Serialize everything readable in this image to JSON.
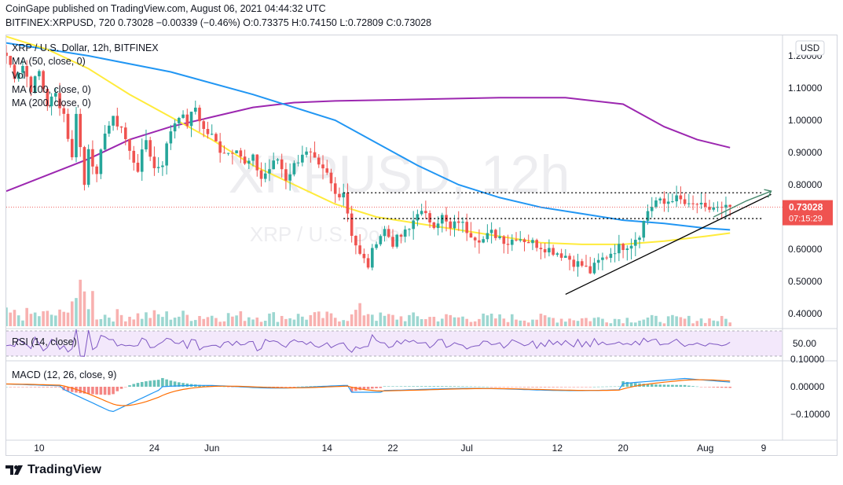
{
  "header": {
    "published_line": "CoinGape published on TradingView.com, August 06, 2021 04:44:32 UTC",
    "symbol": "BITFINEX:XRPUSD, 720",
    "last": "0.73028",
    "change": "−0.00339 (−0.46%)",
    "open": "O:0.73375",
    "high": "H:0.74150",
    "low": "L:0.72809",
    "close": "C:0.73028"
  },
  "legend": {
    "title": "XRP / U.S. Dollar, 12h, BITFINEX",
    "ma50": "MA (50, close, 0)",
    "vol": "Vol",
    "ma100": "MA (100, close, 0)",
    "ma200": "MA (200, close, 0)"
  },
  "watermark": {
    "main": "XRPUSD, 12h",
    "sub": "XRP / U.S. Dollar"
  },
  "price_axis": {
    "currency": "USD",
    "ticks": [
      "1.20000",
      "1.10000",
      "1.00000",
      "0.90000",
      "0.80000",
      "0.60000",
      "0.50000",
      "0.40000"
    ],
    "price_label": "0.73028",
    "countdown_label": "07:15:29"
  },
  "rsi_pane": {
    "label": "RSI (14, close)",
    "tick": "50.00"
  },
  "macd_pane": {
    "label": "MACD (12, 26, close, 9)",
    "ticks": [
      "0.10000",
      "0.00000",
      "−0.10000"
    ]
  },
  "time_axis": {
    "ticks": [
      "10",
      "24",
      "Jun",
      "14",
      "22",
      "Jul",
      "12",
      "20",
      "Aug",
      "9"
    ]
  },
  "footer": {
    "brand": "TradingView"
  },
  "colors": {
    "up": "#26a69a",
    "down": "#ef5350",
    "ma50": "#ffeb3b",
    "ma100": "#2196f3",
    "ma200": "#9c27b0",
    "rsi": "#7e57c2",
    "macd": "#2196f3",
    "signal": "#ff6d00",
    "trendline": "#000000",
    "arrow": "#4a8a6f",
    "price_badge": "#ef5350"
  },
  "chart_data": {
    "type": "candlestick",
    "title": "XRP / U.S. Dollar, 12h, BITFINEX",
    "xlabel": "",
    "ylabel": "",
    "x_ticks": [
      "10",
      "24",
      "Jun",
      "14",
      "22",
      "Jul",
      "12",
      "20",
      "Aug",
      "9"
    ],
    "ylim": [
      0.32,
      1.22
    ],
    "y_ticks": [
      1.2,
      1.1,
      1.0,
      0.9,
      0.8,
      0.6,
      0.5,
      0.4
    ],
    "last_price": 0.73028,
    "close_path": [
      [
        0,
        1.2
      ],
      [
        2,
        1.14
      ],
      [
        4,
        1.17
      ],
      [
        6,
        1.1
      ],
      [
        8,
        1.15
      ],
      [
        10,
        1.05
      ],
      [
        12,
        1.08
      ],
      [
        14,
        1.02
      ],
      [
        16,
        0.88
      ],
      [
        17,
        1.03
      ],
      [
        19,
        0.8
      ],
      [
        20,
        0.92
      ],
      [
        22,
        0.82
      ],
      [
        24,
        0.97
      ],
      [
        26,
        1.0
      ],
      [
        28,
        0.98
      ],
      [
        30,
        0.9
      ],
      [
        32,
        0.85
      ],
      [
        34,
        0.94
      ],
      [
        36,
        0.85
      ],
      [
        38,
        0.87
      ],
      [
        40,
        0.97
      ],
      [
        42,
        1.02
      ],
      [
        44,
        0.99
      ],
      [
        46,
        1.04
      ],
      [
        48,
        0.97
      ],
      [
        50,
        0.95
      ],
      [
        52,
        0.91
      ],
      [
        54,
        0.9
      ],
      [
        56,
        0.92
      ],
      [
        58,
        0.86
      ],
      [
        60,
        0.88
      ],
      [
        62,
        0.82
      ],
      [
        64,
        0.85
      ],
      [
        66,
        0.88
      ],
      [
        68,
        0.82
      ],
      [
        70,
        0.86
      ],
      [
        72,
        0.9
      ],
      [
        74,
        0.89
      ],
      [
        76,
        0.85
      ],
      [
        78,
        0.83
      ],
      [
        80,
        0.77
      ],
      [
        82,
        0.78
      ],
      [
        84,
        0.65
      ],
      [
        86,
        0.58
      ],
      [
        88,
        0.55
      ],
      [
        90,
        0.63
      ],
      [
        92,
        0.66
      ],
      [
        94,
        0.62
      ],
      [
        96,
        0.64
      ],
      [
        98,
        0.66
      ],
      [
        100,
        0.72
      ],
      [
        102,
        0.7
      ],
      [
        104,
        0.68
      ],
      [
        106,
        0.7
      ],
      [
        108,
        0.66
      ],
      [
        110,
        0.69
      ],
      [
        112,
        0.66
      ],
      [
        114,
        0.64
      ],
      [
        116,
        0.63
      ],
      [
        118,
        0.65
      ],
      [
        120,
        0.64
      ],
      [
        122,
        0.62
      ],
      [
        124,
        0.64
      ],
      [
        126,
        0.63
      ],
      [
        128,
        0.62
      ],
      [
        130,
        0.61
      ],
      [
        132,
        0.6
      ],
      [
        134,
        0.59
      ],
      [
        136,
        0.58
      ],
      [
        138,
        0.56
      ],
      [
        140,
        0.55
      ],
      [
        142,
        0.53
      ],
      [
        144,
        0.56
      ],
      [
        146,
        0.58
      ],
      [
        148,
        0.6
      ],
      [
        150,
        0.61
      ],
      [
        152,
        0.62
      ],
      [
        154,
        0.65
      ],
      [
        156,
        0.72
      ],
      [
        158,
        0.75
      ],
      [
        160,
        0.74
      ],
      [
        162,
        0.76
      ],
      [
        164,
        0.75
      ],
      [
        166,
        0.73
      ],
      [
        168,
        0.74
      ],
      [
        170,
        0.72
      ],
      [
        172,
        0.73
      ],
      [
        174,
        0.72
      ],
      [
        176,
        0.73
      ]
    ],
    "ma50": [
      [
        0,
        1.26
      ],
      [
        10,
        1.22
      ],
      [
        20,
        1.16
      ],
      [
        30,
        1.08
      ],
      [
        40,
        1.01
      ],
      [
        50,
        0.94
      ],
      [
        60,
        0.86
      ],
      [
        70,
        0.8
      ],
      [
        80,
        0.74
      ],
      [
        90,
        0.7
      ],
      [
        100,
        0.68
      ],
      [
        110,
        0.66
      ],
      [
        120,
        0.64
      ],
      [
        130,
        0.62
      ],
      [
        140,
        0.615
      ],
      [
        150,
        0.615
      ],
      [
        160,
        0.625
      ],
      [
        170,
        0.64
      ],
      [
        176,
        0.65
      ]
    ],
    "ma100": [
      [
        0,
        1.24
      ],
      [
        20,
        1.2
      ],
      [
        40,
        1.15
      ],
      [
        60,
        1.08
      ],
      [
        80,
        1.0
      ],
      [
        90,
        0.93
      ],
      [
        100,
        0.86
      ],
      [
        110,
        0.8
      ],
      [
        120,
        0.76
      ],
      [
        130,
        0.73
      ],
      [
        140,
        0.71
      ],
      [
        150,
        0.69
      ],
      [
        160,
        0.68
      ],
      [
        170,
        0.665
      ],
      [
        176,
        0.66
      ]
    ],
    "ma200": [
      [
        0,
        0.78
      ],
      [
        10,
        0.83
      ],
      [
        20,
        0.88
      ],
      [
        30,
        0.94
      ],
      [
        40,
        0.98
      ],
      [
        50,
        1.01
      ],
      [
        60,
        1.04
      ],
      [
        70,
        1.055
      ],
      [
        80,
        1.06
      ],
      [
        100,
        1.065
      ],
      [
        120,
        1.07
      ],
      [
        136,
        1.07
      ],
      [
        150,
        1.05
      ],
      [
        160,
        0.98
      ],
      [
        168,
        0.94
      ],
      [
        176,
        0.915
      ]
    ],
    "resistance": 0.775,
    "support": 0.695,
    "trendline": [
      [
        136,
        0.46
      ],
      [
        186,
        0.77
      ]
    ],
    "arrow": [
      [
        172,
        0.7
      ],
      [
        180,
        0.75
      ],
      [
        186,
        0.78
      ]
    ],
    "rsi_level": 50,
    "macd_zero": 0
  }
}
